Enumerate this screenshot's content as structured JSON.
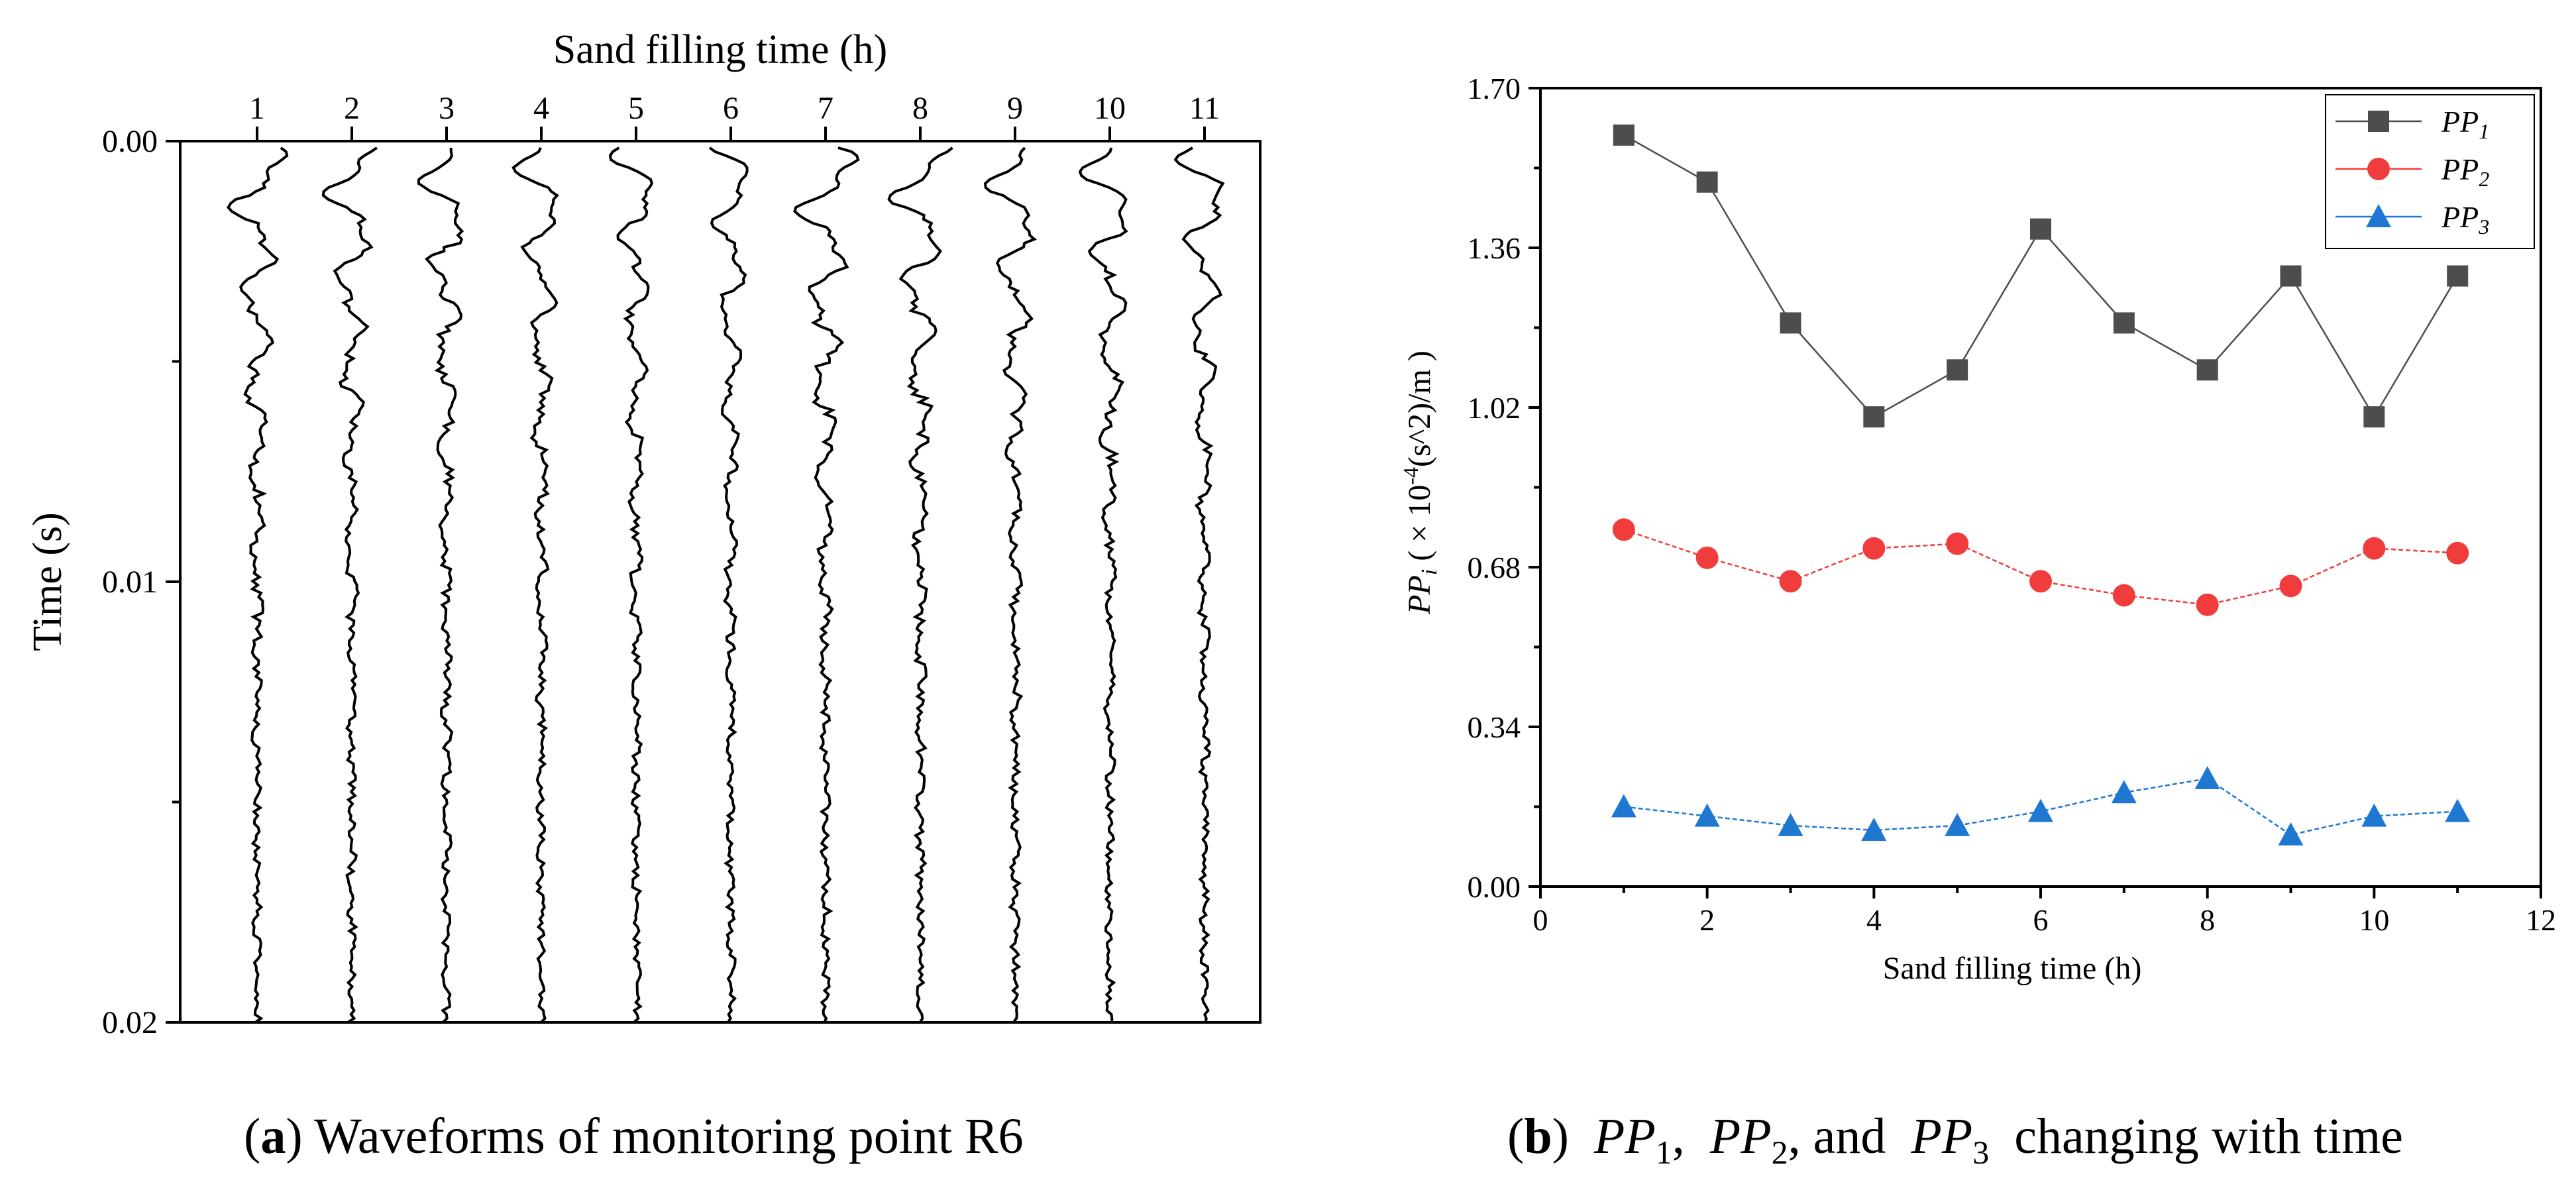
{
  "panel_a": {
    "caption_letter": "a",
    "caption_text": "Waveforms of monitoring point R6"
  },
  "panel_b": {
    "caption_letter": "b",
    "caption_pp": "PP",
    "caption_subs": [
      "1",
      "2",
      "3"
    ],
    "caption_and": ", and",
    "caption_text": "changing with time"
  },
  "chart_data": [
    {
      "type": "line",
      "title": "",
      "xlabel": "Sand filling time (h)",
      "ylabel": "Time (s)",
      "categories": [
        "1",
        "2",
        "3",
        "4",
        "5",
        "6",
        "7",
        "8",
        "9",
        "10",
        "11"
      ],
      "y_ticks": [
        "0.00",
        "0.01",
        "0.02"
      ],
      "ylim": [
        0,
        0.02
      ],
      "y_inverted": true,
      "x_axis_position": "top",
      "series_note_visible": "",
      "grid": false
    },
    {
      "type": "line",
      "title": "",
      "xlabel": "Sand filling time (h)",
      "ylabel": "PPi ( × 10-4(s^2)/m )",
      "ylabel_parts": {
        "pp": "PP",
        "i": "i",
        "pre": " ( × 10",
        "exp": "-4",
        "post": "(s^2)/m )"
      },
      "xlim": [
        0,
        12
      ],
      "ylim": [
        0,
        1.7
      ],
      "x_ticks": [
        "0",
        "2",
        "4",
        "6",
        "8",
        "10",
        "12"
      ],
      "y_ticks": [
        "0.00",
        "0.34",
        "0.68",
        "1.02",
        "1.36",
        "1.70"
      ],
      "x": [
        1,
        2,
        3,
        4,
        5,
        6,
        7,
        8,
        9,
        10,
        11
      ],
      "series": [
        {
          "name": "PP1",
          "name_base": "PP",
          "name_sub": "1",
          "color": "#4d4d4d",
          "marker": "square",
          "values": [
            1.6,
            1.5,
            1.2,
            1.0,
            1.1,
            1.4,
            1.2,
            1.1,
            1.3,
            1.0,
            1.3
          ]
        },
        {
          "name": "PP2",
          "name_base": "PP",
          "name_sub": "2",
          "color": "#f03c3c",
          "marker": "circle",
          "values": [
            0.76,
            0.7,
            0.65,
            0.72,
            0.73,
            0.65,
            0.62,
            0.6,
            0.64,
            0.72,
            0.71
          ]
        },
        {
          "name": "PP3",
          "name_base": "PP",
          "name_sub": "3",
          "color": "#1e78d2",
          "marker": "triangle",
          "values": [
            0.17,
            0.15,
            0.13,
            0.12,
            0.13,
            0.16,
            0.2,
            0.23,
            0.11,
            0.15,
            0.16
          ]
        }
      ],
      "legend_position": "top-right",
      "grid": false
    }
  ]
}
